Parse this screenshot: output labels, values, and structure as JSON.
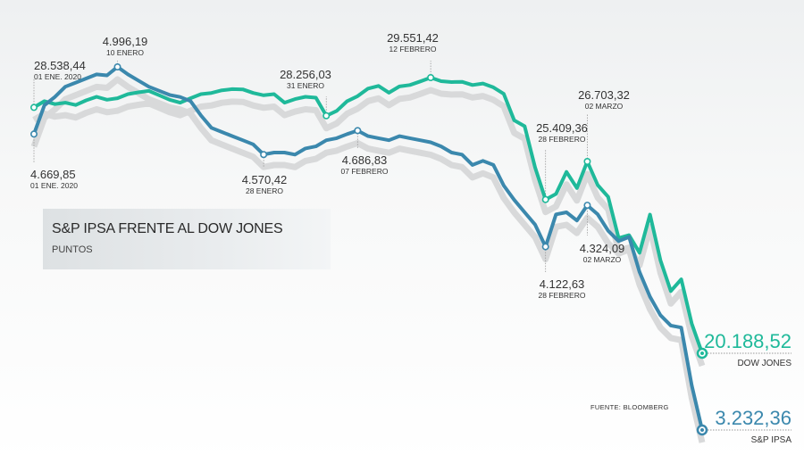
{
  "chart_data": {
    "type": "line",
    "title": "S&P IPSA FRENTE AL DOW JONES",
    "subtitle": "PUNTOS",
    "source": "FUENTE: BLOOMBERG",
    "series": [
      {
        "name": "DOW JONES",
        "color": "#1fb99a",
        "values": [
          28538.44,
          28750,
          28650,
          28700,
          28620,
          28780,
          28900,
          28800,
          28850,
          28990,
          29050,
          29100,
          28950,
          28800,
          28700,
          28850,
          28990,
          29030,
          29120,
          29160,
          29150,
          29030,
          28950,
          28990,
          28700,
          28820,
          28900,
          28870,
          28256.03,
          28420,
          28750,
          28920,
          29180,
          29270,
          29040,
          29250,
          29300,
          29420,
          29551.42,
          29430,
          29400,
          29410,
          29300,
          29350,
          29220,
          29000,
          28100,
          27900,
          26500,
          25409.36,
          25600,
          26350,
          25800,
          26703.32,
          25900,
          25500,
          24100,
          24200,
          23600,
          24900,
          23350,
          22300,
          22700,
          21200,
          20188.52
        ],
        "annotations": [
          {
            "value": "28.538,44",
            "date": "01 ENE. 2020"
          },
          {
            "value": "28.256,03",
            "date": "31 ENERO"
          },
          {
            "value": "29.551,42",
            "date": "12 FEBRERO"
          },
          {
            "value": "25.409,36",
            "date": "28 FEBRERO"
          },
          {
            "value": "26.703,32",
            "date": "02 MARZO"
          }
        ],
        "end_value": "20.188,52"
      },
      {
        "name": "S&P IPSA",
        "color": "#3b88ad",
        "values": [
          4669.85,
          4810,
          4850,
          4900,
          4920,
          4940,
          4960,
          4955,
          4996.19,
          4960,
          4930,
          4900,
          4880,
          4860,
          4850,
          4830,
          4760,
          4700,
          4680,
          4660,
          4640,
          4620,
          4570.42,
          4580,
          4580,
          4570,
          4600,
          4610,
          4640,
          4650,
          4670,
          4686.83,
          4660,
          4650,
          4640,
          4660,
          4650,
          4640,
          4630,
          4610,
          4580,
          4570,
          4520,
          4540,
          4520,
          4420,
          4350,
          4290,
          4230,
          4122.63,
          4280,
          4290,
          4250,
          4324.09,
          4280,
          4200,
          4150,
          4170,
          4000,
          3880,
          3790,
          3740,
          3730,
          3450,
          3232.36
        ],
        "annotations": [
          {
            "value": "4.669,85",
            "date": "01 ENE. 2020"
          },
          {
            "value": "4.996,19",
            "date": "10 ENERO"
          },
          {
            "value": "4.570,42",
            "date": "28 ENERO"
          },
          {
            "value": "4.686,83",
            "date": "07 FEBRERO"
          },
          {
            "value": "4.122,63",
            "date": "28 FEBRERO"
          },
          {
            "value": "4.324,09",
            "date": "02 MARZO"
          }
        ],
        "end_value": "3.232,36"
      }
    ],
    "grid": false,
    "legend": "end-of-line labels"
  }
}
